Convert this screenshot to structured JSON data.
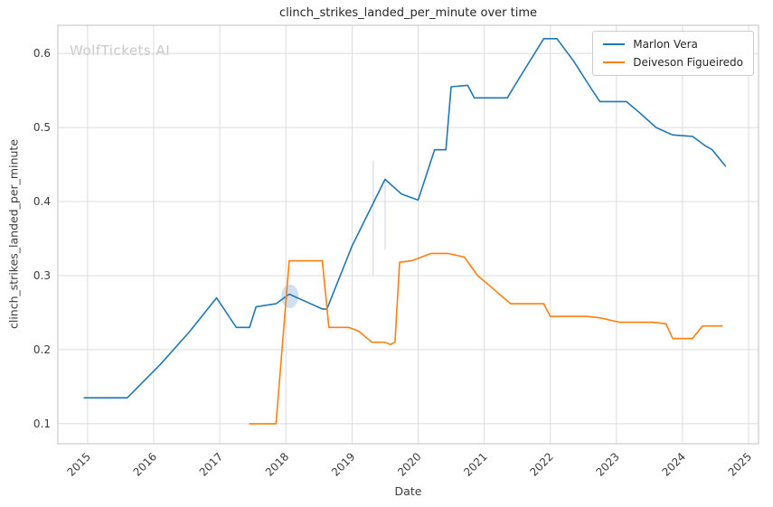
{
  "watermark": "WolfTickets.AI",
  "chart_data": {
    "type": "line",
    "title": "clinch_strikes_landed_per_minute over time",
    "xlabel": "Date",
    "ylabel": "clinch_strikes_landed_per_minute",
    "xlim": [
      2014.55,
      2025.15
    ],
    "ylim": [
      0.073,
      0.638
    ],
    "xticks": [
      2015,
      2016,
      2017,
      2018,
      2019,
      2020,
      2021,
      2022,
      2023,
      2024,
      2025
    ],
    "yticks": [
      0.1,
      0.2,
      0.3,
      0.4,
      0.5,
      0.6
    ],
    "grid": true,
    "legend_position": "upper right",
    "series": [
      {
        "name": "Marlon Vera",
        "color": "#1f77b4",
        "x": [
          2014.95,
          2015.6,
          2016.1,
          2016.55,
          2016.95,
          2017.25,
          2017.45,
          2017.55,
          2017.85,
          2018.05,
          2018.3,
          2018.55,
          2018.62,
          2019.0,
          2019.5,
          2019.75,
          2020.0,
          2020.25,
          2020.42,
          2020.5,
          2020.75,
          2020.85,
          2021.35,
          2021.45,
          2021.9,
          2022.1,
          2022.35,
          2022.6,
          2022.75,
          2023.15,
          2023.35,
          2023.6,
          2023.85,
          2024.15,
          2024.35,
          2024.45,
          2024.65
        ],
        "y": [
          0.135,
          0.135,
          0.18,
          0.225,
          0.27,
          0.23,
          0.23,
          0.258,
          0.262,
          0.275,
          0.265,
          0.255,
          0.255,
          0.34,
          0.43,
          0.41,
          0.402,
          0.47,
          0.47,
          0.555,
          0.557,
          0.54,
          0.54,
          0.555,
          0.62,
          0.62,
          0.59,
          0.555,
          0.535,
          0.535,
          0.52,
          0.5,
          0.49,
          0.488,
          0.475,
          0.47,
          0.448
        ]
      },
      {
        "name": "Deiveson Figueiredo",
        "color": "#ff7f0e",
        "x": [
          2017.45,
          2017.85,
          2018.05,
          2018.55,
          2018.65,
          2018.95,
          2019.1,
          2019.3,
          2019.5,
          2019.58,
          2019.65,
          2019.72,
          2019.9,
          2020.2,
          2020.45,
          2020.7,
          2020.9,
          2021.1,
          2021.4,
          2021.9,
          2022.0,
          2022.55,
          2022.75,
          2023.05,
          2023.55,
          2023.75,
          2023.85,
          2024.15,
          2024.3,
          2024.6
        ],
        "y": [
          0.1,
          0.1,
          0.32,
          0.32,
          0.23,
          0.23,
          0.225,
          0.21,
          0.21,
          0.207,
          0.21,
          0.318,
          0.32,
          0.33,
          0.33,
          0.325,
          0.3,
          0.285,
          0.262,
          0.262,
          0.245,
          0.245,
          0.243,
          0.237,
          0.237,
          0.235,
          0.215,
          0.215,
          0.232,
          0.232
        ]
      }
    ],
    "annotations": [
      {
        "type": "ci-ellipse",
        "x": 2018.06,
        "y": 0.272,
        "rx_years": 0.13,
        "ry_units": 0.016,
        "color": "#a8c8e6",
        "opacity": 0.55
      },
      {
        "type": "ci-vline",
        "x": 2019.32,
        "y1": 0.3,
        "y2": 0.455,
        "color": "#d9dfe8",
        "opacity": 0.95
      },
      {
        "type": "ci-vline",
        "x": 2019.5,
        "y1": 0.335,
        "y2": 0.43,
        "color": "#d9dfe8",
        "opacity": 0.95
      }
    ]
  }
}
